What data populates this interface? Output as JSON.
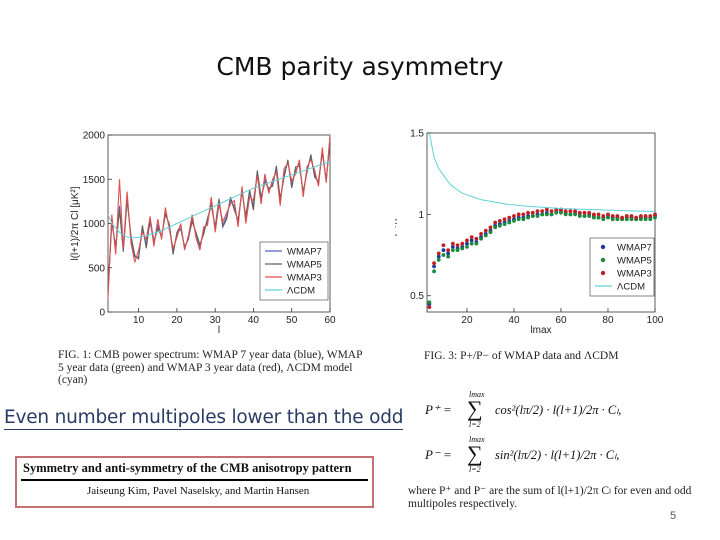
{
  "slide": {
    "title": "CMB parity asymmetry",
    "page_number": "5",
    "highlight_text": "Even number multipoles lower than the odd"
  },
  "figure1": {
    "caption": "FIG. 1: CMB power spectrum: WMAP 7 year data (blue), WMAP 5 year data (green) and WMAP 3 year data (red), ΛCDM model (cyan)"
  },
  "figure3": {
    "caption": "FIG. 3: P+/P− of WMAP data and ΛCDM"
  },
  "paper": {
    "title": "Symmetry and anti-symmetry of the CMB anisotropy pattern",
    "authors": "Jaiseung Kim, Pavel Naselsky, and Martin Hansen"
  },
  "equations": {
    "p_plus_lhs": "P⁺ =",
    "p_minus_lhs": "P⁻ =",
    "sum_top": "lmax",
    "sum_bottom": "l=2",
    "p_plus_rhs": "cos²(lπ/2) · l(l+1)/2π · Cₗ,",
    "p_minus_rhs": "sin²(lπ/2) · l(l+1)/2π · Cₗ,",
    "note": "where P⁺ and P⁻ are the sum of l(l+1)/2π Cₗ for even and odd multipoles respectively."
  },
  "chart_data": [
    {
      "type": "line",
      "xlabel": "l",
      "ylabel": "l(l+1)/2π Cl [μK²]",
      "xlim": [
        2,
        60
      ],
      "ylim": [
        0,
        2000
      ],
      "xticks": [
        10,
        20,
        30,
        40,
        50,
        60
      ],
      "yticks": [
        0,
        500,
        1000,
        1500,
        2000
      ],
      "legend_position": "bottom-right",
      "colors": {
        "WMAP7": "#5060c0",
        "WMAP5": "#606060",
        "WMAP3": "#e05050",
        "ΛCDM": "#60d0d8"
      },
      "x": [
        2,
        3,
        4,
        5,
        6,
        7,
        8,
        9,
        10,
        11,
        12,
        13,
        14,
        15,
        16,
        17,
        18,
        19,
        20,
        21,
        22,
        23,
        24,
        25,
        26,
        27,
        28,
        29,
        30,
        31,
        32,
        33,
        34,
        35,
        36,
        37,
        38,
        39,
        40,
        41,
        42,
        43,
        44,
        45,
        46,
        47,
        48,
        49,
        50,
        51,
        52,
        53,
        54,
        55,
        56,
        57,
        58,
        59,
        60
      ],
      "series": [
        {
          "name": "WMAP7",
          "values": [
            200,
            1050,
            700,
            1200,
            680,
            1300,
            820,
            620,
            620,
            950,
            760,
            1020,
            780,
            980,
            840,
            1120,
            980,
            680,
            880,
            940,
            740,
            820,
            1060,
            880,
            740,
            920,
            1020,
            1240,
            930,
            1250,
            980,
            1080,
            1260,
            1200,
            1000,
            1380,
            1050,
            1350,
            1200,
            1580,
            1270,
            1500,
            1380,
            1450,
            1620,
            1250,
            1560,
            1700,
            1430,
            1600,
            1680,
            1330,
            1600,
            1750,
            1550,
            1450,
            1820,
            1480,
            1980
          ]
        },
        {
          "name": "WMAP5",
          "values": [
            250,
            1000,
            750,
            1150,
            700,
            1260,
            860,
            640,
            600,
            980,
            720,
            1060,
            800,
            940,
            860,
            1100,
            1000,
            650,
            900,
            980,
            720,
            840,
            1020,
            900,
            760,
            880,
            1060,
            1200,
            960,
            1280,
            960,
            1050,
            1300,
            1150,
            1040,
            1360,
            1080,
            1380,
            1150,
            1600,
            1300,
            1460,
            1400,
            1420,
            1650,
            1280,
            1520,
            1720,
            1400,
            1640,
            1650,
            1360,
            1580,
            1780,
            1520,
            1480,
            1800,
            1500,
            1900
          ]
        },
        {
          "name": "WMAP3",
          "values": [
            150,
            1100,
            650,
            1500,
            720,
            1360,
            780,
            560,
            700,
            900,
            820,
            1080,
            740,
            1050,
            820,
            1180,
            940,
            720,
            840,
            1000,
            700,
            860,
            1100,
            840,
            700,
            960,
            980,
            1300,
            900,
            1220,
            1020,
            1120,
            1220,
            1260,
            960,
            1420,
            1000,
            1300,
            1260,
            1540,
            1220,
            1560,
            1340,
            1500,
            1580,
            1200,
            1620,
            1680,
            1480,
            1560,
            1720,
            1300,
            1640,
            1720,
            1600,
            1420,
            1860,
            1460,
            2020
          ]
        },
        {
          "name": "ΛCDM",
          "values": [
            1100,
            1000,
            950,
            900,
            870,
            850,
            840,
            840,
            845,
            850,
            860,
            875,
            890,
            905,
            920,
            940,
            960,
            980,
            1000,
            1020,
            1040,
            1060,
            1080,
            1100,
            1120,
            1140,
            1160,
            1180,
            1200,
            1220,
            1240,
            1260,
            1280,
            1300,
            1320,
            1340,
            1360,
            1380,
            1400,
            1415,
            1430,
            1445,
            1460,
            1475,
            1490,
            1505,
            1520,
            1535,
            1550,
            1565,
            1580,
            1595,
            1610,
            1625,
            1640,
            1655,
            1670,
            1685,
            1700
          ]
        }
      ]
    },
    {
      "type": "scatter",
      "xlabel": "lmax",
      "ylabel": "P+/P−",
      "xlim": [
        3,
        100
      ],
      "ylim": [
        0.4,
        1.5
      ],
      "xticks": [
        20,
        40,
        60,
        80,
        100
      ],
      "yticks": [
        0.5,
        1,
        1.5
      ],
      "legend_position": "bottom-right",
      "colors": {
        "WMAP7": "#1a3aa0",
        "WMAP5": "#1a8a3a",
        "WMAP3": "#c02020",
        "ΛCDM": "#60d0d8"
      },
      "x": [
        4,
        6,
        8,
        10,
        12,
        14,
        16,
        18,
        20,
        22,
        24,
        26,
        28,
        30,
        32,
        34,
        36,
        38,
        40,
        42,
        44,
        46,
        48,
        50,
        52,
        54,
        56,
        58,
        60,
        62,
        64,
        66,
        68,
        70,
        72,
        74,
        76,
        78,
        80,
        82,
        84,
        86,
        88,
        90,
        92,
        94,
        96,
        98,
        100
      ],
      "series": [
        {
          "name": "WMAP7",
          "values": [
            0.45,
            0.68,
            0.74,
            0.78,
            0.76,
            0.8,
            0.79,
            0.8,
            0.82,
            0.84,
            0.83,
            0.86,
            0.88,
            0.9,
            0.93,
            0.94,
            0.95,
            0.96,
            0.97,
            0.98,
            0.98,
            0.99,
            0.99,
            1.0,
            1.0,
            1.01,
            1.0,
            1.02,
            1.02,
            1.01,
            1.0,
            1.01,
            1.0,
            0.99,
            1.0,
            0.99,
            0.98,
            0.98,
            0.99,
            0.98,
            0.98,
            0.97,
            0.98,
            0.98,
            0.97,
            0.98,
            0.98,
            0.98,
            0.99
          ]
        },
        {
          "name": "WMAP5",
          "values": [
            0.46,
            0.65,
            0.72,
            0.75,
            0.74,
            0.78,
            0.78,
            0.79,
            0.8,
            0.82,
            0.82,
            0.85,
            0.87,
            0.89,
            0.92,
            0.93,
            0.94,
            0.95,
            0.96,
            0.97,
            0.97,
            0.98,
            0.99,
            0.99,
            1.0,
            1.0,
            1.0,
            1.01,
            1.01,
            1.0,
            1.0,
            1.0,
            0.99,
            0.99,
            0.99,
            0.98,
            0.98,
            0.97,
            0.98,
            0.97,
            0.97,
            0.97,
            0.97,
            0.97,
            0.97,
            0.97,
            0.97,
            0.97,
            0.98
          ]
        },
        {
          "name": "WMAP3",
          "values": [
            0.43,
            0.7,
            0.76,
            0.81,
            0.78,
            0.82,
            0.81,
            0.82,
            0.84,
            0.86,
            0.85,
            0.88,
            0.9,
            0.92,
            0.95,
            0.96,
            0.97,
            0.98,
            0.99,
            1.0,
            1.0,
            1.01,
            1.01,
            1.02,
            1.02,
            1.03,
            1.02,
            1.03,
            1.03,
            1.02,
            1.02,
            1.02,
            1.01,
            1.01,
            1.01,
            1.0,
            1.0,
            0.99,
            1.0,
            0.99,
            0.99,
            0.98,
            0.99,
            0.99,
            0.98,
            0.99,
            0.99,
            0.99,
            1.0
          ]
        },
        {
          "name": "ΛCDM",
          "values": [
            1.5,
            1.35,
            1.28,
            1.24,
            1.2,
            1.17,
            1.15,
            1.13,
            1.12,
            1.11,
            1.1,
            1.09,
            1.085,
            1.08,
            1.075,
            1.07,
            1.065,
            1.06,
            1.058,
            1.055,
            1.052,
            1.05,
            1.048,
            1.046,
            1.044,
            1.042,
            1.04,
            1.038,
            1.036,
            1.035,
            1.034,
            1.033,
            1.032,
            1.031,
            1.03,
            1.029,
            1.028,
            1.027,
            1.026,
            1.025,
            1.024,
            1.023,
            1.022,
            1.021,
            1.02,
            1.02,
            1.019,
            1.018,
            1.018
          ]
        }
      ]
    }
  ]
}
